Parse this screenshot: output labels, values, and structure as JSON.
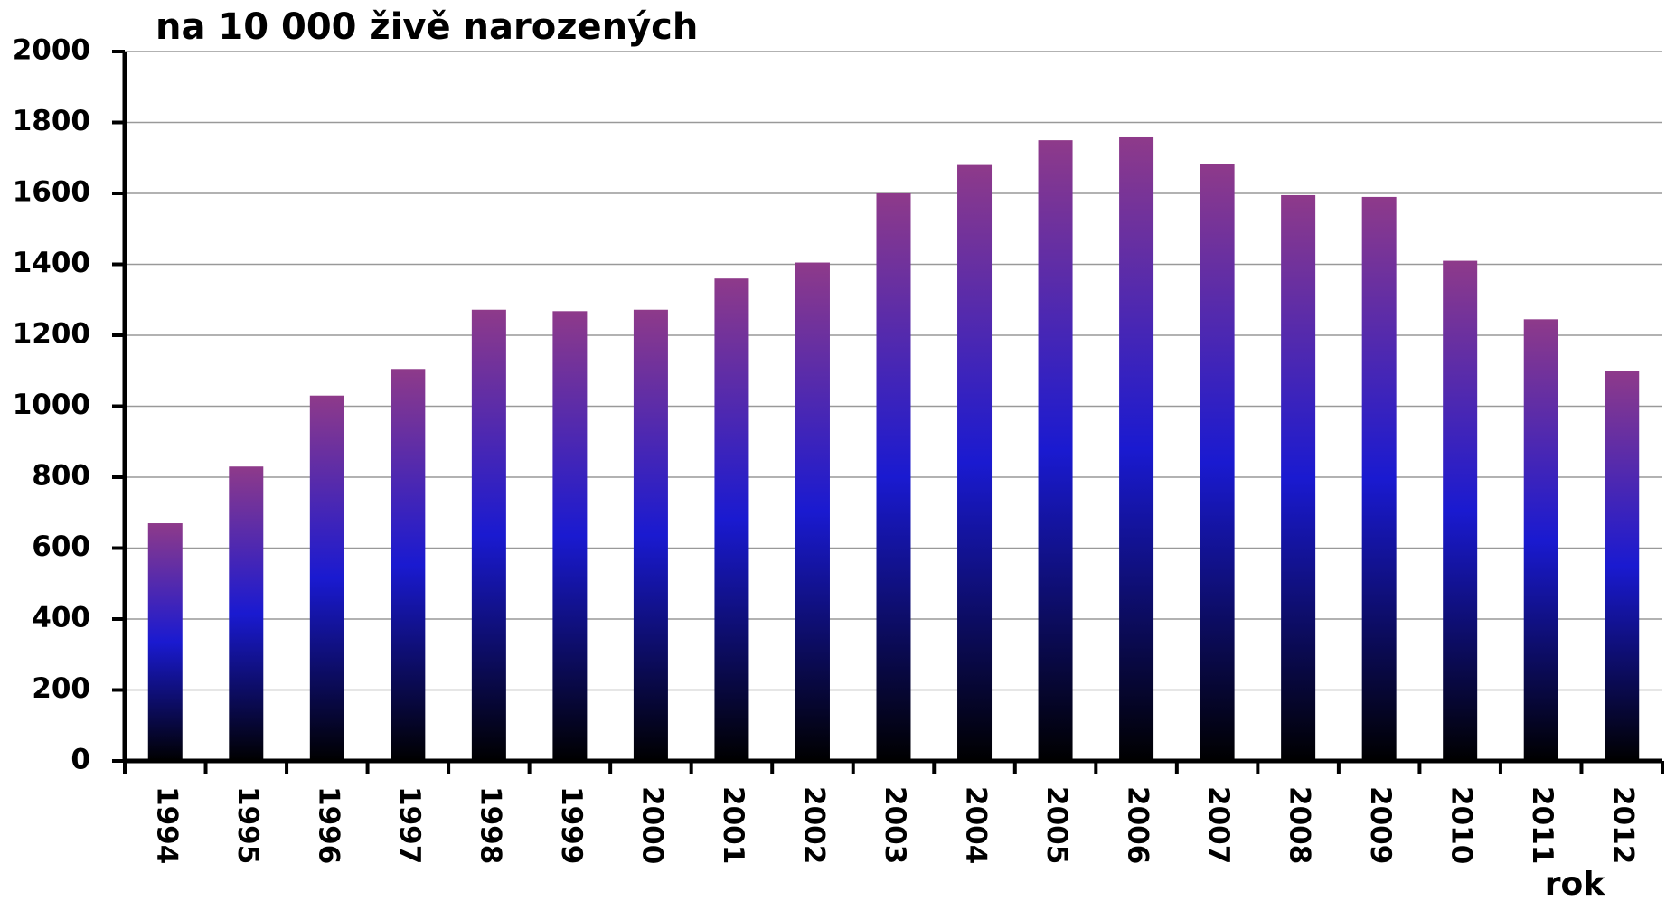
{
  "chart_data": {
    "type": "bar",
    "title": "na 10 000 živě narozených",
    "x_label": "rok",
    "categories": [
      "1994",
      "1995",
      "1996",
      "1997",
      "1998",
      "1999",
      "2000",
      "2001",
      "2002",
      "2003",
      "2004",
      "2005",
      "2006",
      "2007",
      "2008",
      "2009",
      "2010",
      "2011",
      "2012"
    ],
    "values": [
      670,
      830,
      1030,
      1105,
      1272,
      1268,
      1272,
      1360,
      1405,
      1600,
      1680,
      1750,
      1758,
      1683,
      1595,
      1590,
      1410,
      1245,
      1100
    ],
    "colors": [
      "#000000",
      "#1a1ad0",
      "#8e3a8a"
    ],
    "ylim": [
      0,
      2000
    ],
    "yticks": [
      0,
      200,
      400,
      600,
      800,
      1000,
      1200,
      1400,
      1600,
      1800,
      2000
    ],
    "grid": true
  }
}
